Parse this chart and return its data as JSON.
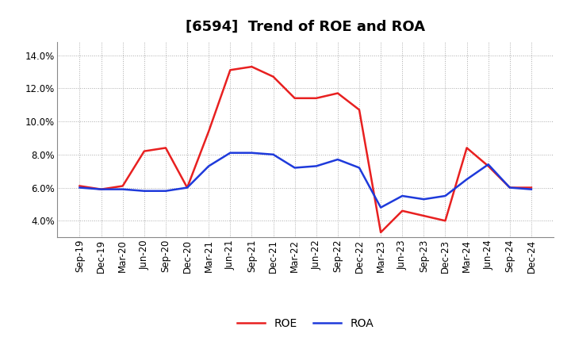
{
  "title": "[6594]  Trend of ROE and ROA",
  "x_labels": [
    "Sep-19",
    "Dec-19",
    "Mar-20",
    "Jun-20",
    "Sep-20",
    "Dec-20",
    "Mar-21",
    "Jun-21",
    "Sep-21",
    "Dec-21",
    "Mar-22",
    "Jun-22",
    "Sep-22",
    "Dec-22",
    "Mar-23",
    "Jun-23",
    "Sep-23",
    "Dec-23",
    "Mar-24",
    "Jun-24",
    "Sep-24",
    "Dec-24"
  ],
  "roe": [
    6.1,
    5.9,
    6.1,
    8.2,
    8.4,
    6.0,
    9.4,
    13.1,
    13.3,
    12.7,
    11.4,
    11.4,
    11.7,
    10.7,
    3.3,
    4.6,
    4.3,
    4.0,
    8.4,
    7.3,
    6.0,
    6.0
  ],
  "roa": [
    6.0,
    5.9,
    5.9,
    5.8,
    5.8,
    6.0,
    7.3,
    8.1,
    8.1,
    8.0,
    7.2,
    7.3,
    7.7,
    7.2,
    4.8,
    5.5,
    5.3,
    5.5,
    6.5,
    7.4,
    6.0,
    5.9
  ],
  "roe_color": "#e82020",
  "roa_color": "#1e3adb",
  "ylim": [
    3.0,
    14.8
  ],
  "yticks": [
    4.0,
    6.0,
    8.0,
    10.0,
    12.0,
    14.0
  ],
  "grid_color": "#aaaaaa",
  "bg_color": "#ffffff",
  "plot_bg_color": "#ffffff",
  "title_fontsize": 13,
  "legend_fontsize": 10,
  "tick_fontsize": 8.5
}
